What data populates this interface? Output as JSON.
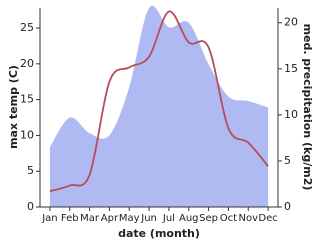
{
  "chart_data": {
    "type": "line_area",
    "x_label": "date (month)",
    "y_label": "max temp (C)",
    "y2_label": "med. precipitation (kg/m2)",
    "categories": [
      "Jan",
      "Feb",
      "Mar",
      "Apr",
      "May",
      "Jun",
      "Jul",
      "Aug",
      "Sep",
      "Oct",
      "Nov",
      "Dec"
    ],
    "series": [
      {
        "name": "med. precipitation",
        "color": "#b0baf2",
        "axis": "y2",
        "values": [
          6.5,
          9.7,
          8.0,
          7.8,
          13.0,
          21.6,
          19.5,
          20.0,
          15.5,
          12.0,
          11.5,
          10.8
        ]
      },
      {
        "name": "max temp",
        "color": "#b84c5a",
        "values": [
          2.2,
          3.0,
          4.5,
          17.5,
          19.5,
          21.0,
          27.3,
          23.0,
          22.3,
          11.0,
          9.0,
          5.7
        ]
      }
    ],
    "ylim": [
      0,
      27.8
    ],
    "yticks": [
      0,
      5,
      10,
      15,
      20,
      25
    ],
    "y2lim": [
      0,
      21.6
    ],
    "y2ticks": [
      0,
      5,
      10,
      15,
      20
    ]
  }
}
